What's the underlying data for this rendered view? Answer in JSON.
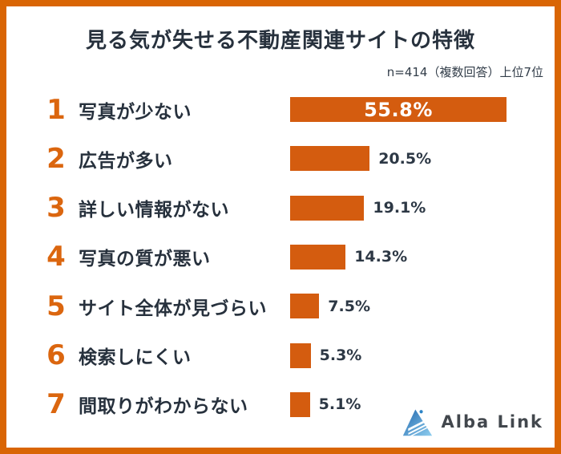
{
  "header": {
    "title": "見る気が失せる不動産関連サイトの特徴",
    "note": "n=414（複数回答）上位7位"
  },
  "chart_data": {
    "type": "bar",
    "orientation": "horizontal",
    "title": "見る気が失せる不動産関連サイトの特徴",
    "subtitle": "n=414（複数回答）上位7位",
    "ranks": [
      "1",
      "2",
      "3",
      "4",
      "5",
      "6",
      "7"
    ],
    "categories": [
      "写真が少ない",
      "広告が多い",
      "詳しい情報がない",
      "写真の質が悪い",
      "サイト全体が見づらい",
      "検索しにくい",
      "間取りがわからない"
    ],
    "values": [
      55.8,
      20.5,
      19.1,
      14.3,
      7.5,
      5.3,
      5.1
    ],
    "value_labels": [
      "55.8%",
      "20.5%",
      "19.1%",
      "14.3%",
      "7.5%",
      "5.3%",
      "5.1%"
    ],
    "xlim": [
      0,
      58
    ],
    "grid": false,
    "legend": false,
    "bar_color": "#d45c0f",
    "value_label_layout": "rank 1 label inside bar (white), others right of bar (dark)"
  },
  "footer": {
    "brand": "Alba Link"
  },
  "colors": {
    "frame_border": "#d96504",
    "bar_orange": "#d45c0f",
    "rank_orange": "#db660f",
    "text_dark": "#27313d",
    "value_text": "#2d3845",
    "note_text": "#333e4a",
    "brand_text": "#42474d",
    "logo_blue_dark": "#2268ae",
    "logo_blue_light": "#8fceef"
  }
}
